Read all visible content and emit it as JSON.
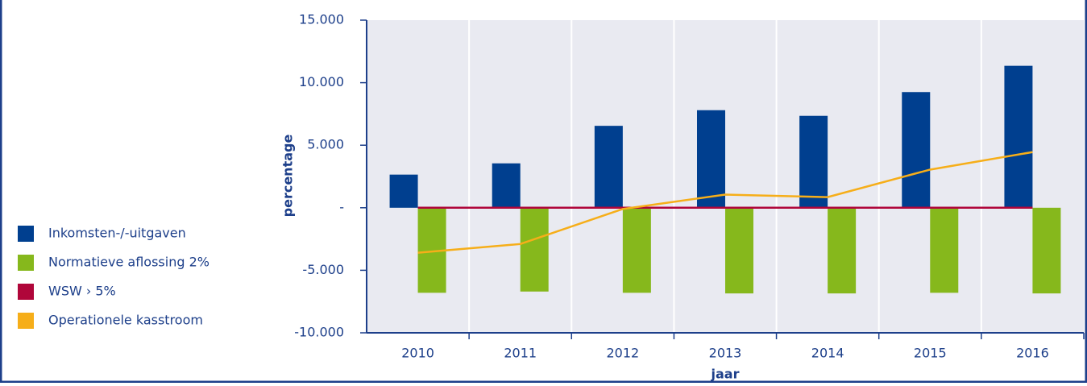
{
  "chart_data": {
    "type": "bar-line",
    "categories": [
      "2010",
      "2011",
      "2012",
      "2013",
      "2014",
      "2015",
      "2016"
    ],
    "series": [
      {
        "name": "Inkomsten-/-uitgaven",
        "color": "#003f8f",
        "kind": "bar",
        "values": [
          2650,
          3550,
          6550,
          7800,
          7350,
          9250,
          11350
        ]
      },
      {
        "name": "Normatieve aflossing 2%",
        "color": "#86b81c",
        "kind": "bar",
        "values": [
          -6800,
          -6700,
          -6800,
          -6850,
          -6850,
          -6800,
          -6850
        ]
      },
      {
        "name": "WSW › 5%",
        "color": "#b0063a",
        "kind": "line",
        "values": [
          0,
          0,
          0,
          0,
          0,
          0,
          0
        ]
      },
      {
        "name": "Operationele kasstroom",
        "color": "#f6ae19",
        "kind": "line",
        "values": [
          -3600,
          -2900,
          -100,
          1050,
          850,
          3050,
          4450
        ]
      }
    ],
    "ylabel": "percentage",
    "xlabel": "jaar",
    "ylim": [
      -10000,
      15000
    ],
    "yticks": [
      {
        "value": -10000,
        "label": "-10.000"
      },
      {
        "value": -5000,
        "label": "-5.000"
      },
      {
        "value": 0,
        "label": "-"
      },
      {
        "value": 5000,
        "label": "5.000"
      },
      {
        "value": 10000,
        "label": "10.000"
      },
      {
        "value": 15000,
        "label": "15.000"
      }
    ]
  }
}
